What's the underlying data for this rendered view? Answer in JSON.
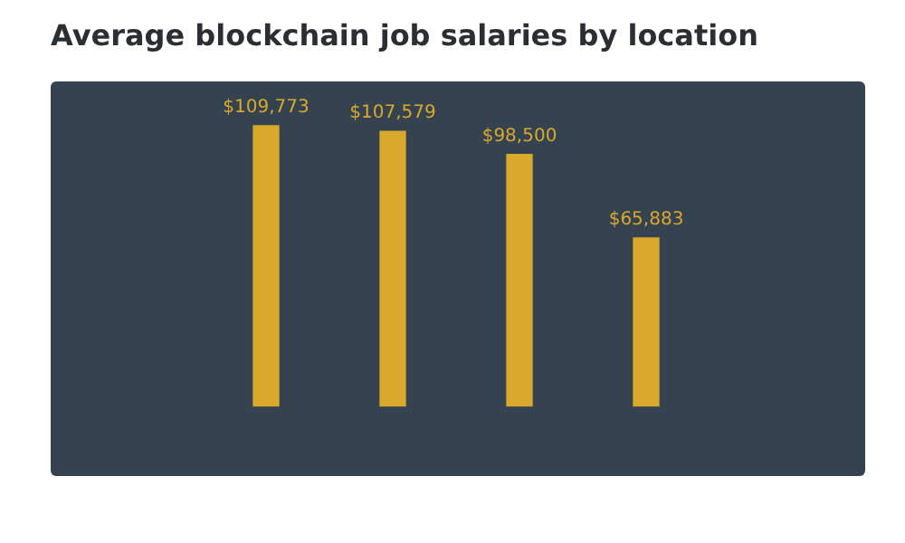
{
  "chart_data": {
    "type": "bar",
    "title": "Average blockchain job salaries by location",
    "categories": [
      null,
      null,
      null,
      null
    ],
    "values": [
      109773,
      107579,
      98500,
      65883
    ],
    "value_labels": [
      "$109,773",
      "$107,579",
      "$98,500",
      "$65,883"
    ],
    "color": "#d9a92c"
  }
}
